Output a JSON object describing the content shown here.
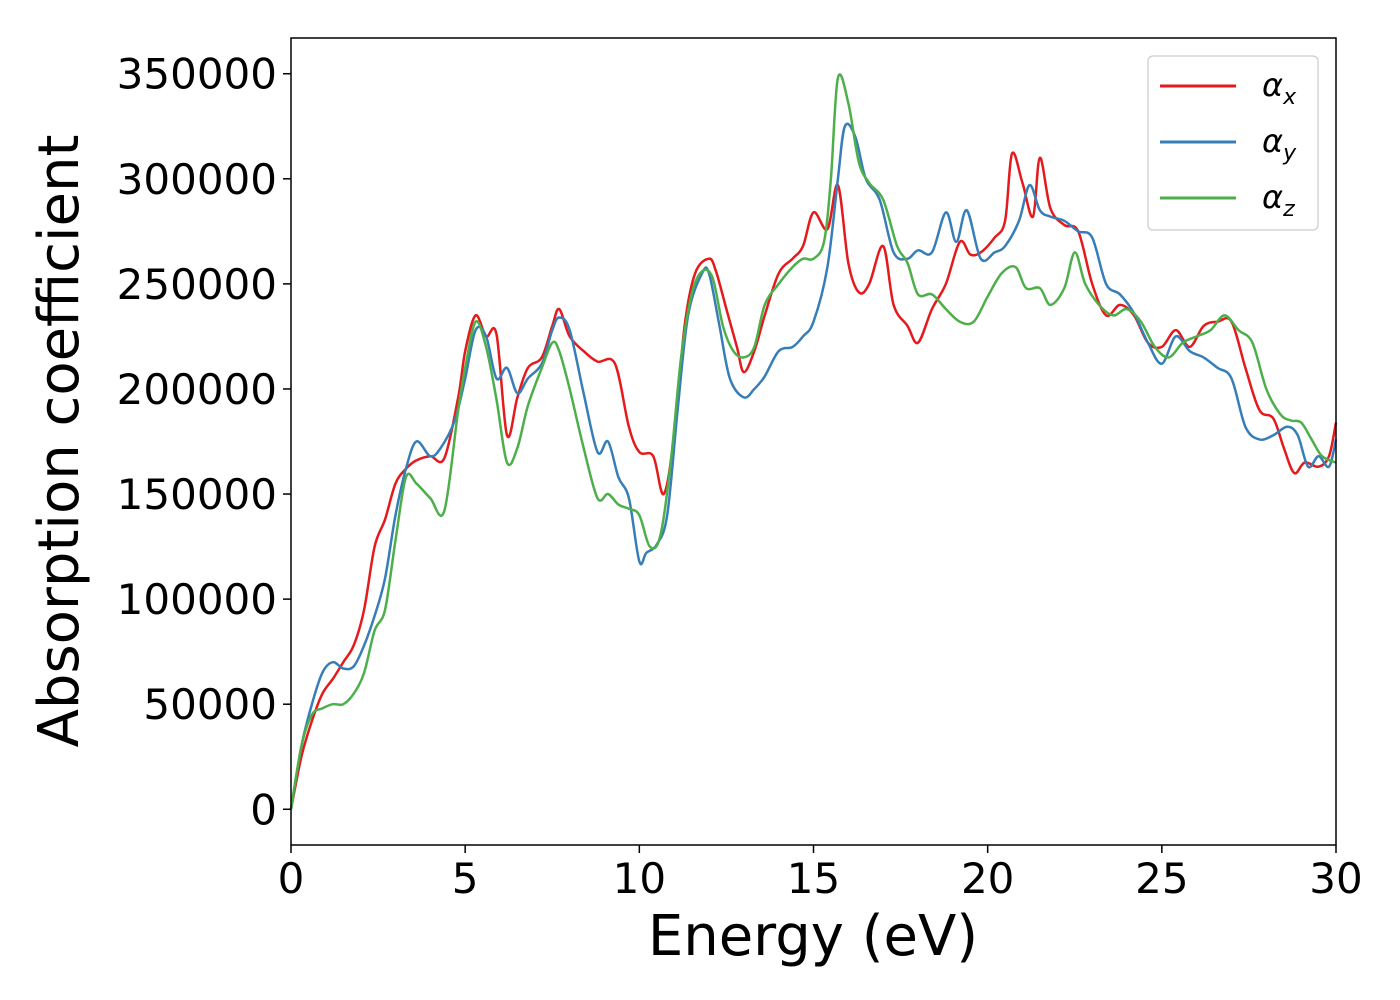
{
  "chart_data": {
    "type": "line",
    "title": "",
    "xlabel": "Energy (eV)",
    "ylabel": "Absorption coefficient",
    "xlim": [
      0,
      30
    ],
    "ylim": [
      -17000,
      367000
    ],
    "xticks": [
      0,
      5,
      10,
      15,
      20,
      25,
      30
    ],
    "yticks": [
      0,
      50000,
      100000,
      150000,
      200000,
      250000,
      300000,
      350000
    ],
    "grid": false,
    "legend_position": "top-right",
    "series": [
      {
        "name": "αx",
        "name_base": "α",
        "name_sub": "x",
        "color": "#e41a1c",
        "x": [
          0,
          0.3,
          0.6,
          0.9,
          1.2,
          1.5,
          1.8,
          2.1,
          2.4,
          2.7,
          3.0,
          3.3,
          3.6,
          4.0,
          4.4,
          4.8,
          5.0,
          5.3,
          5.6,
          5.9,
          6.2,
          6.5,
          6.8,
          7.2,
          7.5,
          7.7,
          8.0,
          8.4,
          8.8,
          9.3,
          9.7,
          10.0,
          10.4,
          10.7,
          11.0,
          11.3,
          11.6,
          12.0,
          12.2,
          12.5,
          12.8,
          13.0,
          13.3,
          13.6,
          14.0,
          14.4,
          14.7,
          15.0,
          15.4,
          15.7,
          16.0,
          16.3,
          16.6,
          17.0,
          17.3,
          17.7,
          18.0,
          18.4,
          18.8,
          19.2,
          19.5,
          19.8,
          20.2,
          20.5,
          20.7,
          21.0,
          21.3,
          21.5,
          21.8,
          22.2,
          22.6,
          23.0,
          23.4,
          23.8,
          24.2,
          24.6,
          25.0,
          25.4,
          25.8,
          26.2,
          26.6,
          27.0,
          27.4,
          27.8,
          28.2,
          28.5,
          28.8,
          29.1,
          29.5,
          29.8,
          30.0
        ],
        "values": [
          0,
          25000,
          42000,
          55000,
          62000,
          70000,
          78000,
          95000,
          125000,
          138000,
          155000,
          162000,
          166000,
          168000,
          167000,
          196000,
          218000,
          235000,
          225000,
          226000,
          178000,
          196000,
          210000,
          215000,
          230000,
          238000,
          225000,
          218000,
          213000,
          212000,
          182000,
          170000,
          168000,
          150000,
          178000,
          230000,
          255000,
          262000,
          256000,
          238000,
          220000,
          208000,
          218000,
          235000,
          255000,
          262000,
          268000,
          284000,
          276000,
          297000,
          260000,
          246000,
          250000,
          268000,
          240000,
          230000,
          222000,
          238000,
          250000,
          270000,
          264000,
          265000,
          272000,
          280000,
          312000,
          298000,
          282000,
          310000,
          286000,
          278000,
          275000,
          250000,
          235000,
          240000,
          235000,
          222000,
          220000,
          228000,
          220000,
          230000,
          232000,
          232000,
          210000,
          190000,
          186000,
          172000,
          160000,
          165000,
          163000,
          168000,
          184000
        ]
      },
      {
        "name": "αy",
        "name_base": "α",
        "name_sub": "y",
        "color": "#377eb8",
        "x": [
          0,
          0.3,
          0.6,
          0.9,
          1.2,
          1.5,
          1.8,
          2.1,
          2.4,
          2.7,
          3.0,
          3.3,
          3.6,
          4.0,
          4.3,
          4.7,
          5.0,
          5.3,
          5.6,
          5.9,
          6.2,
          6.5,
          6.8,
          7.2,
          7.5,
          7.7,
          8.0,
          8.4,
          8.8,
          9.1,
          9.4,
          9.7,
          10.0,
          10.2,
          10.5,
          10.8,
          11.1,
          11.4,
          11.8,
          12.0,
          12.3,
          12.6,
          13.0,
          13.3,
          13.6,
          14.0,
          14.4,
          14.7,
          15.0,
          15.4,
          15.7,
          15.9,
          16.2,
          16.5,
          16.9,
          17.3,
          17.7,
          18.0,
          18.4,
          18.8,
          19.1,
          19.4,
          19.8,
          20.2,
          20.5,
          20.9,
          21.2,
          21.5,
          21.8,
          22.2,
          22.6,
          23.0,
          23.4,
          23.8,
          24.2,
          24.6,
          25.0,
          25.4,
          25.8,
          26.2,
          26.6,
          27.0,
          27.4,
          27.8,
          28.2,
          28.6,
          28.9,
          29.2,
          29.5,
          29.8,
          30.0
        ],
        "values": [
          0,
          30000,
          50000,
          65000,
          70000,
          67000,
          68000,
          78000,
          92000,
          110000,
          140000,
          162000,
          175000,
          168000,
          172000,
          185000,
          205000,
          228000,
          225000,
          205000,
          210000,
          198000,
          205000,
          212000,
          228000,
          234000,
          228000,
          198000,
          170000,
          175000,
          158000,
          148000,
          118000,
          122000,
          126000,
          140000,
          190000,
          235000,
          255000,
          255000,
          230000,
          205000,
          196000,
          200000,
          206000,
          218000,
          220000,
          225000,
          232000,
          258000,
          300000,
          325000,
          320000,
          300000,
          290000,
          265000,
          262000,
          266000,
          265000,
          284000,
          270000,
          285000,
          262000,
          265000,
          268000,
          280000,
          297000,
          285000,
          282000,
          280000,
          275000,
          272000,
          250000,
          245000,
          236000,
          222000,
          212000,
          225000,
          218000,
          215000,
          210000,
          205000,
          182000,
          176000,
          178000,
          182000,
          178000,
          163000,
          168000,
          163000,
          176000
        ]
      },
      {
        "name": "αz",
        "name_base": "α",
        "name_sub": "z",
        "color": "#4daf4a",
        "x": [
          0,
          0.3,
          0.6,
          0.9,
          1.2,
          1.5,
          1.8,
          2.1,
          2.4,
          2.7,
          3.0,
          3.3,
          3.6,
          4.0,
          4.4,
          4.8,
          5.0,
          5.3,
          5.6,
          5.9,
          6.2,
          6.5,
          6.8,
          7.2,
          7.5,
          7.7,
          8.0,
          8.4,
          8.8,
          9.1,
          9.4,
          9.7,
          10.0,
          10.3,
          10.6,
          10.9,
          11.2,
          11.5,
          11.8,
          12.1,
          12.4,
          12.7,
          13.0,
          13.3,
          13.6,
          14.0,
          14.4,
          14.7,
          15.0,
          15.3,
          15.5,
          15.7,
          16.0,
          16.3,
          16.6,
          17.0,
          17.4,
          17.7,
          18.0,
          18.4,
          18.8,
          19.2,
          19.6,
          20.0,
          20.4,
          20.8,
          21.1,
          21.5,
          21.8,
          22.2,
          22.5,
          22.8,
          23.2,
          23.6,
          24.0,
          24.4,
          24.8,
          25.2,
          25.6,
          26.0,
          26.4,
          26.8,
          27.2,
          27.6,
          28.0,
          28.4,
          28.7,
          29.0,
          29.3,
          29.6,
          30.0
        ],
        "values": [
          0,
          30000,
          45000,
          48000,
          50000,
          50000,
          55000,
          65000,
          85000,
          95000,
          128000,
          158000,
          155000,
          148000,
          142000,
          190000,
          210000,
          232000,
          220000,
          195000,
          165000,
          172000,
          192000,
          210000,
          222000,
          218000,
          200000,
          172000,
          148000,
          150000,
          145000,
          143000,
          140000,
          125000,
          130000,
          165000,
          215000,
          245000,
          256000,
          253000,
          230000,
          218000,
          215000,
          220000,
          240000,
          250000,
          258000,
          262000,
          262000,
          270000,
          300000,
          348000,
          336000,
          308000,
          298000,
          290000,
          268000,
          260000,
          245000,
          245000,
          238000,
          232000,
          232000,
          244000,
          255000,
          258000,
          248000,
          248000,
          240000,
          248000,
          265000,
          250000,
          240000,
          235000,
          238000,
          232000,
          220000,
          215000,
          222000,
          225000,
          228000,
          235000,
          228000,
          222000,
          200000,
          188000,
          185000,
          184000,
          176000,
          168000,
          165000
        ]
      }
    ]
  }
}
